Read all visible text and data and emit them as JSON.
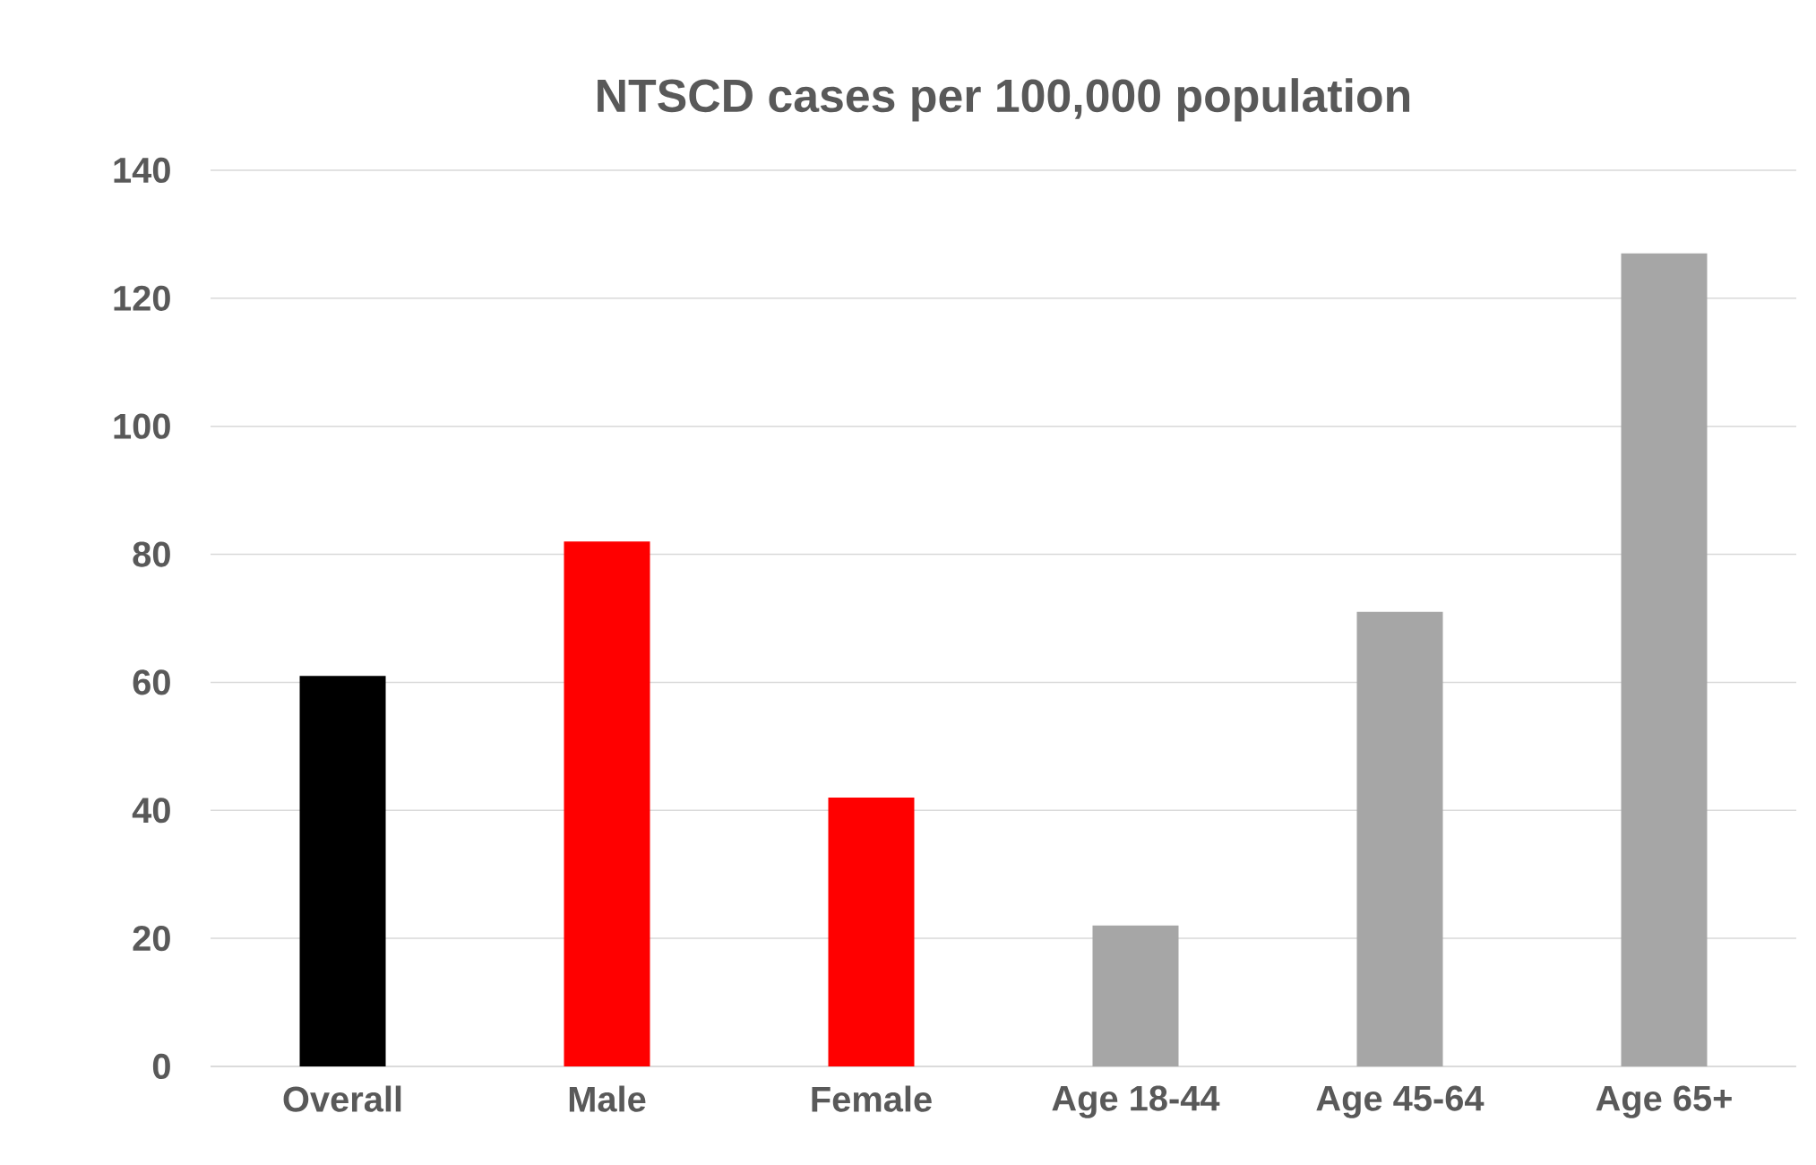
{
  "chart_data": {
    "type": "bar",
    "title": "NTSCD cases per 100,000 population",
    "categories": [
      "Overall",
      "Male",
      "Female",
      "Age 18-44",
      "Age 45-64",
      "Age 65+"
    ],
    "values": [
      61,
      82,
      42,
      22,
      71,
      127
    ],
    "colors": [
      "#000000",
      "#ff0000",
      "#ff0000",
      "#a6a6a6",
      "#a6a6a6",
      "#a6a6a6"
    ],
    "ylim": [
      0,
      140
    ],
    "yticks": [
      0,
      20,
      40,
      60,
      80,
      100,
      120,
      140
    ],
    "grid": "y"
  }
}
